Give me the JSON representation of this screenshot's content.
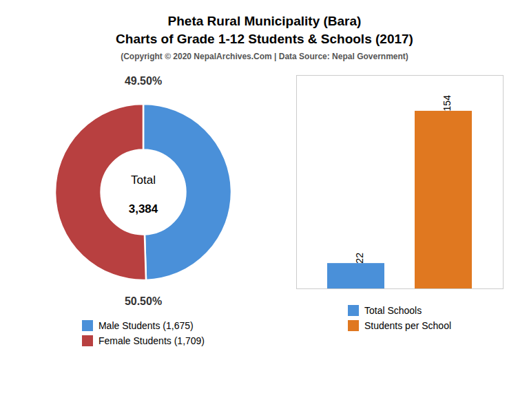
{
  "title": "Pheta Rural Municipality (Bara)\nCharts of Grade 1-12 Students & Schools (2017)",
  "subtitle": "(Copyright © 2020 NepalArchives.Com | Data Source: Nepal Government)",
  "chart_data": [
    {
      "type": "donut",
      "categories": [
        "Male Students (1,675)",
        "Female Students (1,709)"
      ],
      "values": [
        49.5,
        50.5
      ],
      "value_labels": [
        "49.50%",
        "50.50%"
      ],
      "colors": [
        "#4a90d9",
        "#b84040"
      ],
      "annotations": [
        "Total",
        "3,384"
      ],
      "data_labels": true,
      "legend": "bottom"
    },
    {
      "type": "bar",
      "categories": [
        "Total Schools",
        "Students per School"
      ],
      "values": [
        22,
        154
      ],
      "colors": [
        "#4a90d9",
        "#e07820"
      ],
      "ylim": [
        0,
        185
      ],
      "yticks": [],
      "tick_labels": false,
      "data_labels": true,
      "legend": "bottom"
    }
  ]
}
